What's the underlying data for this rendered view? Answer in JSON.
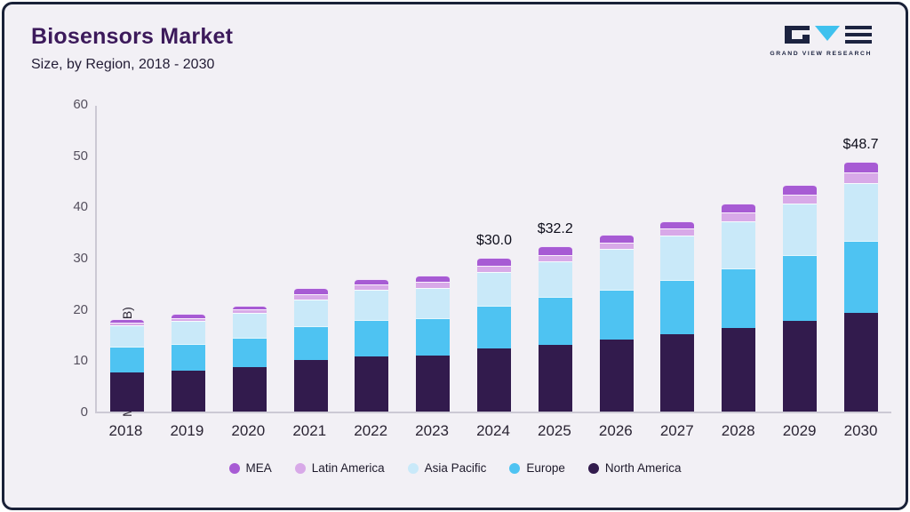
{
  "header": {
    "title": "Biosensors Market",
    "subtitle": "Size, by Region, 2018 - 2030"
  },
  "brand": {
    "logo_text": "GRAND VIEW RESEARCH"
  },
  "chart_data": {
    "type": "bar",
    "stacked": true,
    "title": "Biosensors Market Size, by Region, 2018 - 2030",
    "xlabel": "",
    "ylabel": "Market Size (US$B)",
    "ylim": [
      0,
      60
    ],
    "y_ticks": [
      0,
      10,
      20,
      30,
      40,
      50,
      60
    ],
    "categories": [
      "2018",
      "2019",
      "2020",
      "2021",
      "2022",
      "2023",
      "2024",
      "2025",
      "2026",
      "2027",
      "2028",
      "2029",
      "2030"
    ],
    "series": [
      {
        "name": "North America",
        "color": "#321b4d",
        "values": [
          7.6,
          7.9,
          8.6,
          10.0,
          10.7,
          10.9,
          12.3,
          13.0,
          14.1,
          15.1,
          16.3,
          17.7,
          19.3
        ]
      },
      {
        "name": "Europe",
        "color": "#4ec3f2",
        "values": [
          5.1,
          5.3,
          5.8,
          6.6,
          7.1,
          7.3,
          8.4,
          9.3,
          9.7,
          10.6,
          11.7,
          12.8,
          14.0
        ]
      },
      {
        "name": "Asia Pacific",
        "color": "#c9e9f9",
        "values": [
          4.2,
          4.5,
          4.9,
          5.3,
          6.0,
          5.9,
          6.5,
          7.0,
          7.9,
          8.6,
          9.2,
          10.1,
          11.2
        ]
      },
      {
        "name": "Latin America",
        "color": "#d8a9e8",
        "values": [
          0.5,
          0.6,
          0.6,
          1.0,
          1.0,
          1.2,
          1.3,
          1.3,
          1.3,
          1.5,
          1.6,
          1.7,
          2.1
        ]
      },
      {
        "name": "MEA",
        "color": "#a75bd4",
        "values": [
          0.6,
          0.7,
          0.8,
          1.2,
          1.0,
          1.2,
          1.5,
          1.6,
          1.5,
          1.4,
          1.7,
          1.9,
          2.1
        ]
      }
    ],
    "annotations": [
      "",
      "",
      "",
      "",
      "",
      "",
      "$30.0",
      "$32.2",
      "",
      "",
      "",
      "",
      "$48.7"
    ],
    "legend_position": "bottom",
    "grid": false
  },
  "legend": {
    "items": [
      {
        "label": "MEA",
        "color": "#a75bd4"
      },
      {
        "label": "Latin America",
        "color": "#d8a9e8"
      },
      {
        "label": "Asia Pacific",
        "color": "#c9e9f9"
      },
      {
        "label": "Europe",
        "color": "#4ec3f2"
      },
      {
        "label": "North America",
        "color": "#321b4d"
      }
    ]
  }
}
